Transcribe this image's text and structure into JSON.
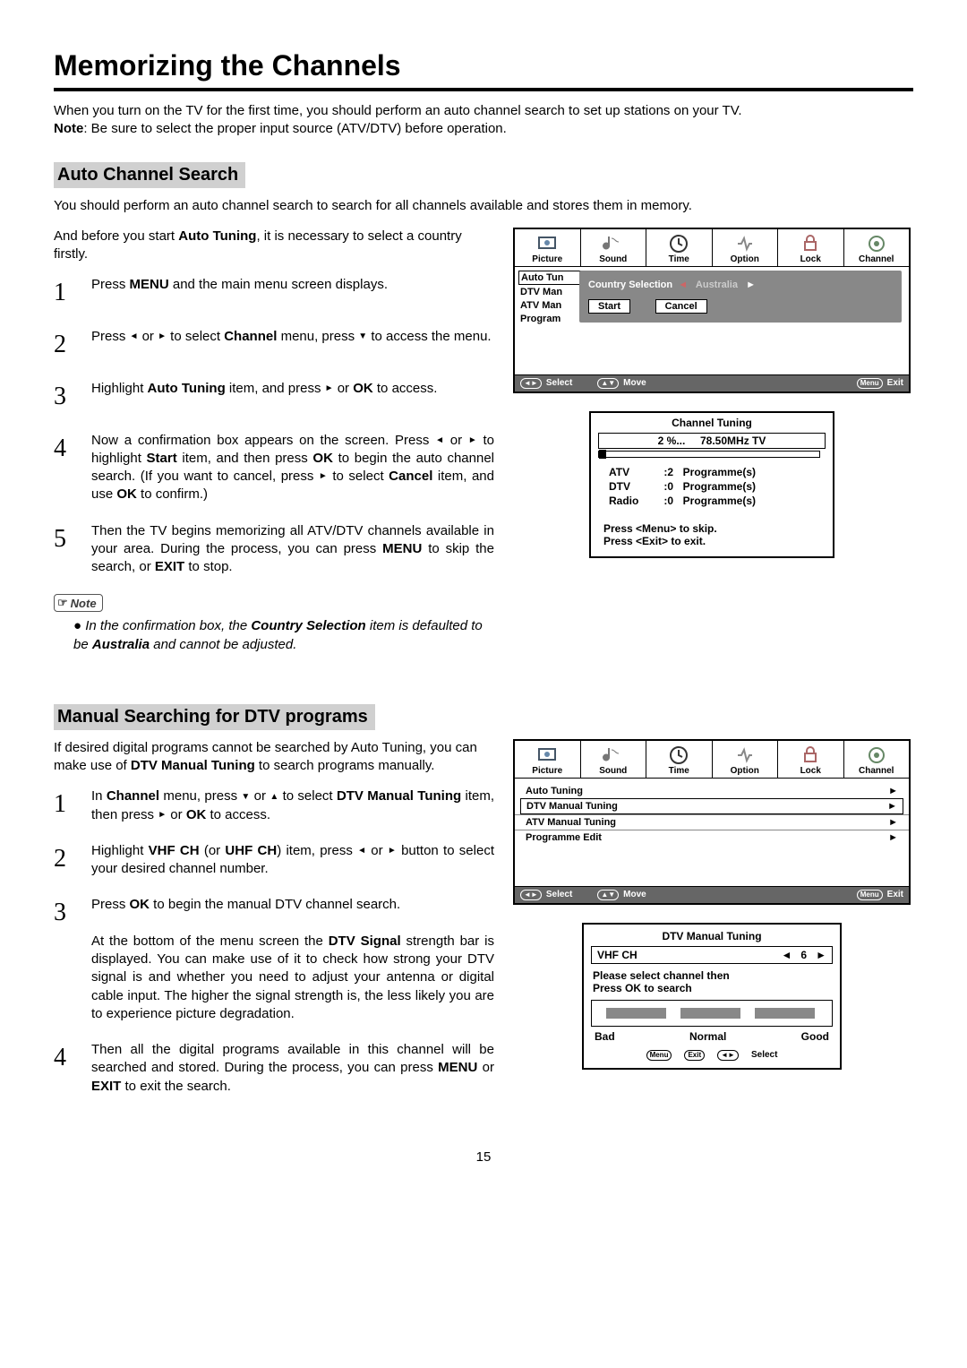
{
  "title": "Memorizing the Channels",
  "intro1": "When you turn on the TV for the first time, you should perform an auto channel search to set up stations on your TV.",
  "intro_note_prefix": "Note",
  "intro_note": ": Be sure to select the proper input source (ATV/DTV) before operation.",
  "auto": {
    "heading": "Auto Channel Search",
    "para1": "You should perform an auto channel search to search for all channels available and stores them in memory.",
    "para2a": "And before you start ",
    "para2b": "Auto Tuning",
    "para2c": ", it is necessary to select a country firstly.",
    "steps": [
      {
        "n": "1",
        "html": "Press <b>MENU</b> and the main menu screen displays."
      },
      {
        "n": "2",
        "html": "Press <span class='tri'>◄</span> or <span class='tri'>►</span> to select <b>Channel</b> menu,  press <span class='tri'>▼</span> to access the menu."
      },
      {
        "n": "3",
        "html": "Highlight <b>Auto Tuning</b> item, and press  <span class='tri'>►</span> or <b>OK</b> to access."
      },
      {
        "n": "4",
        "html": "Now a confirmation box appears on the screen. Press <span class='tri'>◄</span> or <span class='tri'>►</span> to highlight <b>Start</b> item, and then press <b>OK</b> to begin the auto channel search. (If you want to cancel, press  <span class='tri'>►</span> to select <b>Cancel</b> item, and use <b>OK</b>  to confirm.)"
      },
      {
        "n": "5",
        "html": "Then the TV begins memorizing all ATV/DTV channels available in your area. During the process, you can press <b>MENU</b> to skip the search, or <b>EXIT</b> to stop."
      }
    ],
    "note_label": "Note",
    "note_text_html": "In the confirmation box, the <b>Country Selection</b> item is defaulted to be <b>Australia</b> and cannot be adjusted."
  },
  "manual": {
    "heading": "Manual Searching for DTV programs",
    "para1_html": "If desired digital programs cannot be searched by Auto Tuning, you can make use of <b>DTV Manual Tuning</b> to search programs manually.",
    "steps": [
      {
        "n": "1",
        "html": "In <b>Channel</b> menu,  press <span class='tri'>▼</span> or <span class='tri'>▲</span>  to select <b>DTV Manual Tuning</b> item, then press <span class='tri'>►</span> or <b>OK</b> to access."
      },
      {
        "n": "2",
        "html": "Highlight <b>VHF CH</b> (or <b>UHF CH</b>) item, press <span class='tri'>◄</span> or <span class='tri'>►</span> button to select your desired channel number."
      },
      {
        "n": "3",
        "html": "Press <b>OK</b> to begin the manual DTV channel search.<br><br>At the bottom of the menu screen the <b>DTV Signal</b> strength bar is displayed. You can make use of it to check how strong your DTV signal is and whether you need to adjust your antenna or digital cable input. The higher the signal strength is, the less likely you are to experience picture degradation."
      },
      {
        "n": "4",
        "html": "Then all the digital programs available in this channel will be searched and stored. During the process, you can press <b>MENU</b> or <b>EXIT</b> to exit the search."
      }
    ]
  },
  "osd_tabs": [
    "Picture",
    "Sound",
    "Time",
    "Option",
    "Lock",
    "Channel"
  ],
  "osd1": {
    "side": [
      "Auto Tun",
      "DTV Man",
      "ATV Man",
      "Program"
    ],
    "popup_country": "Country Selection",
    "popup_val": "Australia",
    "btn_start": "Start",
    "btn_cancel": "Cancel",
    "footer_select": "Select",
    "footer_move": "Move",
    "footer_menu": "Menu",
    "footer_exit": "Exit"
  },
  "tuning": {
    "title": "Channel   Tuning",
    "percent": "2  %...",
    "freq": "78.50MHz   TV",
    "rows": [
      {
        "a": "ATV",
        "b": ":2",
        "c": "Programme(s)"
      },
      {
        "a": "DTV",
        "b": ":0",
        "c": "Programme(s)"
      },
      {
        "a": "Radio",
        "b": ":0",
        "c": "Programme(s)"
      }
    ],
    "foot1": "Press <Menu> to skip.",
    "foot2": "Press <Exit> to exit."
  },
  "osd2": {
    "list": [
      "Auto Tuning",
      "DTV Manual Tuning",
      "ATV Manual Tuning",
      "Programme Edit"
    ]
  },
  "dtv": {
    "title": "DTV Manual Tuning",
    "vhf": "VHF   CH",
    "ch": "6",
    "text1": "Please select channel then",
    "text2": "Press OK to search",
    "bad": "Bad",
    "normal": "Normal",
    "good": "Good",
    "menu": "Menu",
    "exit": "Exit",
    "select": "Select"
  },
  "pagenum": "15"
}
